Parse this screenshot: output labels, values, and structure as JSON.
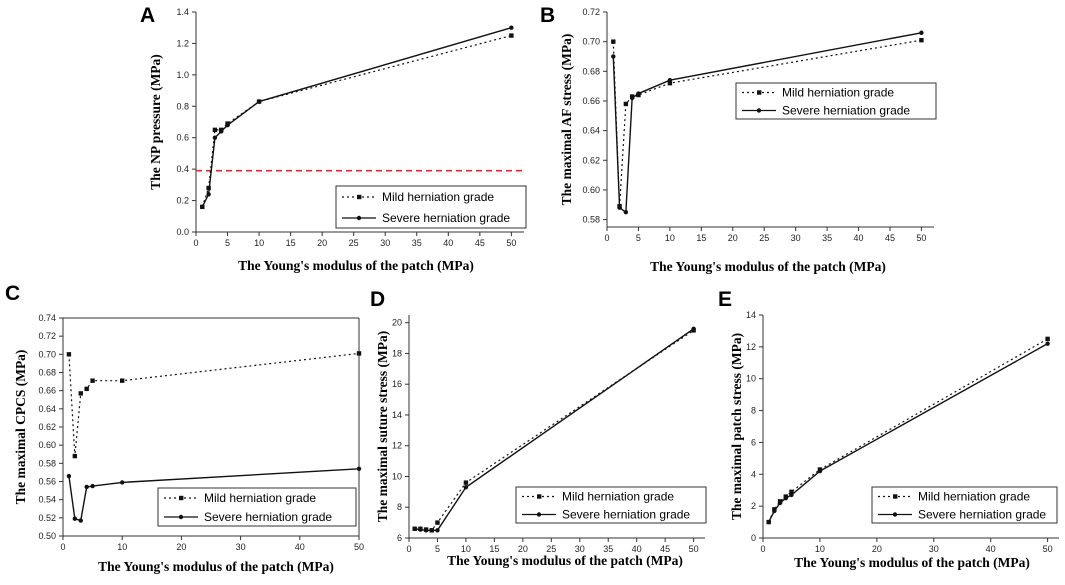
{
  "figure": {
    "series_names": [
      "Mild herniation grade",
      "Severe herniation grade"
    ]
  },
  "chart_data": [
    {
      "type": "line",
      "panel": "A",
      "xlabel": "The Young's modulus of the patch (MPa)",
      "ylabel": "The NP pressure (MPa)",
      "xlim": [
        0,
        52
      ],
      "ylim": [
        0,
        1.4
      ],
      "xticks": [
        0,
        5,
        10,
        15,
        20,
        25,
        30,
        35,
        40,
        45,
        50
      ],
      "yticks": [
        0.0,
        0.2,
        0.4,
        0.6,
        0.8,
        1.0,
        1.2,
        1.4
      ],
      "ytick_labels": [
        "0.0",
        "0.2",
        "0.4",
        "0.6",
        "0.8",
        "1.0",
        "1.2",
        "1.4"
      ],
      "reference_line": {
        "y": 0.39,
        "color": "#e8262b"
      },
      "legend": "bottom-right",
      "series": [
        {
          "name": "Mild herniation grade",
          "x": [
            1,
            2,
            3,
            4,
            5,
            10,
            50
          ],
          "values": [
            0.16,
            0.28,
            0.65,
            0.65,
            0.69,
            0.83,
            1.25
          ]
        },
        {
          "name": "Severe herniation grade",
          "x": [
            1,
            2,
            3,
            4,
            5,
            10,
            50
          ],
          "values": [
            0.16,
            0.24,
            0.6,
            0.64,
            0.68,
            0.83,
            1.3
          ]
        }
      ]
    },
    {
      "type": "line",
      "panel": "B",
      "xlabel": "The Young's modulus of the patch (MPa)",
      "ylabel": "The maximal AF stress (MPa)",
      "xlim": [
        0,
        52
      ],
      "ylim": [
        0.575,
        0.72
      ],
      "xticks": [
        0,
        5,
        10,
        15,
        20,
        25,
        30,
        35,
        40,
        45,
        50
      ],
      "yticks": [
        0.58,
        0.6,
        0.62,
        0.64,
        0.66,
        0.68,
        0.7,
        0.72
      ],
      "ytick_labels": [
        "0.58",
        "0.60",
        "0.62",
        "0.64",
        "0.66",
        "0.68",
        "0.70",
        "0.72"
      ],
      "legend": "top-right",
      "series": [
        {
          "name": "Mild herniation grade",
          "x": [
            1,
            2,
            3,
            4,
            5,
            10,
            50
          ],
          "values": [
            0.7,
            0.589,
            0.658,
            0.663,
            0.664,
            0.672,
            0.701
          ]
        },
        {
          "name": "Severe herniation grade",
          "x": [
            1,
            2,
            3,
            4,
            5,
            10,
            50
          ],
          "values": [
            0.69,
            0.588,
            0.585,
            0.662,
            0.665,
            0.674,
            0.706
          ]
        }
      ]
    },
    {
      "type": "line",
      "panel": "C",
      "xlabel": "The Young's modulus of the patch (MPa)",
      "ylabel": "The maximal CPCS (MPa)",
      "xlim": [
        0,
        50
      ],
      "ylim": [
        0.5,
        0.74
      ],
      "xticks": [
        0,
        10,
        20,
        30,
        40,
        50
      ],
      "yticks": [
        0.5,
        0.52,
        0.54,
        0.56,
        0.58,
        0.6,
        0.62,
        0.64,
        0.66,
        0.68,
        0.7,
        0.72,
        0.74
      ],
      "ytick_labels": [
        "0.50",
        "0.52",
        "0.54",
        "0.56",
        "0.58",
        "0.60",
        "0.62",
        "0.64",
        "0.66",
        "0.68",
        "0.70",
        "0.72",
        "0.74"
      ],
      "legend": "bottom-right",
      "series": [
        {
          "name": "Mild herniation grade",
          "x": [
            1,
            2,
            3,
            4,
            5,
            10,
            50
          ],
          "values": [
            0.7,
            0.588,
            0.657,
            0.662,
            0.671,
            0.671,
            0.701
          ]
        },
        {
          "name": "Severe herniation grade",
          "x": [
            1,
            2,
            3,
            4,
            5,
            10,
            50
          ],
          "values": [
            0.566,
            0.519,
            0.517,
            0.554,
            0.555,
            0.559,
            0.574
          ]
        }
      ]
    },
    {
      "type": "line",
      "panel": "D",
      "xlabel": "The Young's modulus of the patch (MPa)",
      "ylabel": "The maximal suture stress (MPa)",
      "xlim": [
        0,
        52
      ],
      "ylim": [
        6,
        20.5
      ],
      "xticks": [
        0,
        5,
        10,
        15,
        20,
        25,
        30,
        35,
        40,
        45,
        50
      ],
      "yticks": [
        6,
        8,
        10,
        12,
        14,
        16,
        18,
        20
      ],
      "ytick_labels": [
        "6",
        "8",
        "10",
        "12",
        "14",
        "16",
        "18",
        "20"
      ],
      "legend": "bottom-right",
      "series": [
        {
          "name": "Mild herniation grade",
          "x": [
            1,
            2,
            3,
            4,
            5,
            10,
            50
          ],
          "values": [
            6.6,
            6.6,
            6.55,
            6.5,
            7.0,
            9.6,
            19.5
          ]
        },
        {
          "name": "Severe herniation grade",
          "x": [
            1,
            2,
            3,
            4,
            5,
            10,
            50
          ],
          "values": [
            6.6,
            6.55,
            6.5,
            6.5,
            6.5,
            9.3,
            19.6
          ]
        }
      ]
    },
    {
      "type": "line",
      "panel": "E",
      "xlabel": "The Young's modulus of the patch (MPa)",
      "ylabel": "The maximal patch stress (MPa)",
      "xlim": [
        0,
        52
      ],
      "ylim": [
        0,
        14
      ],
      "xticks": [
        0,
        10,
        20,
        30,
        40,
        50
      ],
      "yticks": [
        0,
        2,
        4,
        6,
        8,
        10,
        12,
        14
      ],
      "ytick_labels": [
        "0",
        "2",
        "4",
        "6",
        "8",
        "10",
        "12",
        "14"
      ],
      "legend": "bottom-right",
      "series": [
        {
          "name": "Mild herniation grade",
          "x": [
            1,
            2,
            3,
            4,
            5,
            10,
            50
          ],
          "values": [
            1.0,
            1.8,
            2.3,
            2.6,
            2.9,
            4.3,
            12.5
          ]
        },
        {
          "name": "Severe herniation grade",
          "x": [
            1,
            2,
            3,
            4,
            5,
            10,
            50
          ],
          "values": [
            1.0,
            1.7,
            2.2,
            2.5,
            2.7,
            4.2,
            12.2
          ]
        }
      ]
    }
  ]
}
